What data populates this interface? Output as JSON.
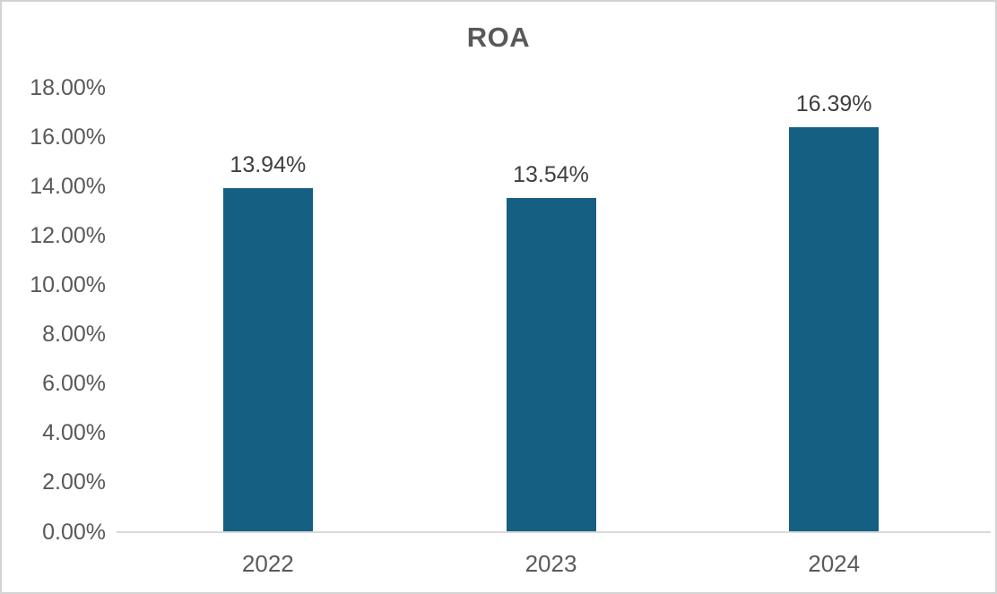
{
  "chart_data": {
    "type": "bar",
    "title": "ROA",
    "categories": [
      "2022",
      "2023",
      "2024"
    ],
    "series": [
      {
        "name": "ROA",
        "values": [
          13.94,
          13.54,
          16.39
        ]
      }
    ],
    "data_labels": [
      "13.94%",
      "13.54%",
      "16.39%"
    ],
    "y_tick_labels": [
      "0.00%",
      "2.00%",
      "4.00%",
      "6.00%",
      "8.00%",
      "10.00%",
      "12.00%",
      "14.00%",
      "16.00%",
      "18.00%"
    ],
    "ylim": [
      0,
      18
    ],
    "xlabel": "",
    "ylabel": "",
    "grid": false,
    "legend": "none",
    "colors": {
      "bar": "#156082",
      "title_text": "#595959",
      "axis_text": "#595959",
      "data_label_text": "#404040",
      "axis_line": "#d9d9d9",
      "frame_border": "#d3d3d3",
      "background": "#ffffff"
    }
  }
}
